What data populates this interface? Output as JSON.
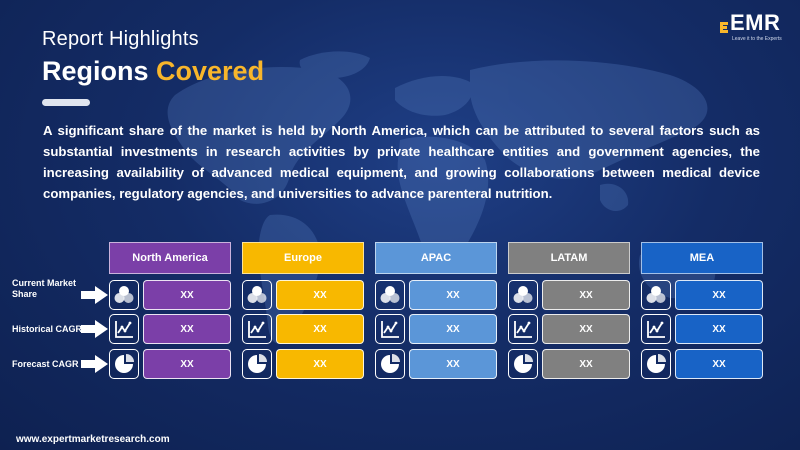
{
  "header": {
    "subtitle": "Report Highlights",
    "title_main": "Regions",
    "title_accent": "Covered"
  },
  "logo": {
    "name": "EMR",
    "tagline": "Leave it to the Experts"
  },
  "description": "A significant share of the market is held by North America, which can be attributed to several factors such as substantial investments in research activities by private healthcare entities and government agencies, the increasing availability of advanced medical equipment, and growing collaborations between medical device companies, regulatory agencies, and universities to advance parenteral nutrition.",
  "rows": [
    {
      "label": "Current Market Share",
      "icon": "share-icon"
    },
    {
      "label": "Historical CAGR",
      "icon": "line-chart-icon"
    },
    {
      "label": "Forecast CAGR",
      "icon": "pie-chart-icon"
    }
  ],
  "regions": [
    {
      "name": "North America",
      "color": "#7b3fa8",
      "values": [
        "XX",
        "XX",
        "XX"
      ]
    },
    {
      "name": "Europe",
      "color": "#f8b800",
      "values": [
        "XX",
        "XX",
        "XX"
      ]
    },
    {
      "name": "APAC",
      "color": "#5b96d8",
      "values": [
        "XX",
        "XX",
        "XX"
      ]
    },
    {
      "name": "LATAM",
      "color": "#808080",
      "values": [
        "XX",
        "XX",
        "XX"
      ]
    },
    {
      "name": "MEA",
      "color": "#1863c6",
      "values": [
        "XX",
        "XX",
        "XX"
      ]
    }
  ],
  "footer": {
    "url": "www.expertmarketresearch.com"
  }
}
